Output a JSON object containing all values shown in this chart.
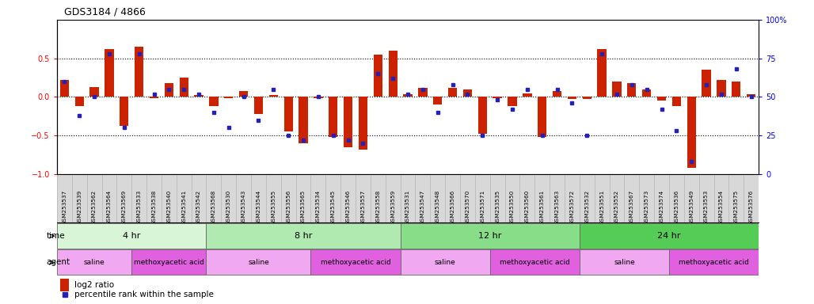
{
  "title": "GDS3184 / 4866",
  "samples": [
    "GSM253537",
    "GSM253539",
    "GSM253562",
    "GSM253564",
    "GSM253569",
    "GSM253533",
    "GSM253538",
    "GSM253540",
    "GSM253541",
    "GSM253542",
    "GSM253568",
    "GSM253530",
    "GSM253543",
    "GSM253544",
    "GSM253555",
    "GSM253556",
    "GSM253565",
    "GSM253534",
    "GSM253545",
    "GSM253546",
    "GSM253557",
    "GSM253558",
    "GSM253559",
    "GSM253531",
    "GSM253547",
    "GSM253548",
    "GSM253566",
    "GSM253570",
    "GSM253571",
    "GSM253535",
    "GSM253550",
    "GSM253560",
    "GSM253561",
    "GSM253563",
    "GSM253572",
    "GSM253532",
    "GSM253551",
    "GSM253552",
    "GSM253567",
    "GSM253573",
    "GSM253574",
    "GSM253536",
    "GSM253549",
    "GSM253553",
    "GSM253554",
    "GSM253575",
    "GSM253576"
  ],
  "log2_ratio": [
    0.22,
    -0.12,
    0.13,
    0.62,
    -0.38,
    0.65,
    -0.02,
    0.18,
    0.25,
    0.02,
    -0.12,
    -0.02,
    0.08,
    -0.22,
    0.02,
    -0.45,
    -0.6,
    -0.02,
    -0.52,
    -0.65,
    -0.68,
    0.55,
    0.6,
    0.03,
    0.12,
    -0.1,
    0.12,
    0.1,
    -0.48,
    -0.02,
    -0.12,
    0.05,
    -0.52,
    0.08,
    -0.03,
    -0.03,
    0.62,
    0.2,
    0.18,
    0.1,
    -0.05,
    -0.12,
    -0.92,
    0.35,
    0.22,
    0.2,
    0.03
  ],
  "percentile": [
    60,
    38,
    50,
    78,
    30,
    78,
    52,
    55,
    55,
    52,
    40,
    30,
    50,
    35,
    55,
    25,
    22,
    50,
    25,
    22,
    20,
    65,
    62,
    52,
    55,
    40,
    58,
    52,
    25,
    48,
    42,
    55,
    25,
    55,
    46,
    25,
    78,
    52,
    58,
    55,
    42,
    28,
    8,
    58,
    52,
    68,
    50
  ],
  "time_groups": [
    {
      "label": "4 hr",
      "start": 0,
      "end": 10,
      "color": "#d8f5d8"
    },
    {
      "label": "8 hr",
      "start": 10,
      "end": 23,
      "color": "#b0eab0"
    },
    {
      "label": "12 hr",
      "start": 23,
      "end": 35,
      "color": "#88dd88"
    },
    {
      "label": "24 hr",
      "start": 35,
      "end": 47,
      "color": "#55cc55"
    }
  ],
  "agent_groups": [
    {
      "label": "saline",
      "start": 0,
      "end": 5,
      "color": "#f0a8f0"
    },
    {
      "label": "methoxyacetic acid",
      "start": 5,
      "end": 10,
      "color": "#e060e0"
    },
    {
      "label": "saline",
      "start": 10,
      "end": 17,
      "color": "#f0a8f0"
    },
    {
      "label": "methoxyacetic acid",
      "start": 17,
      "end": 23,
      "color": "#e060e0"
    },
    {
      "label": "saline",
      "start": 23,
      "end": 29,
      "color": "#f0a8f0"
    },
    {
      "label": "methoxyacetic acid",
      "start": 29,
      "end": 35,
      "color": "#e060e0"
    },
    {
      "label": "saline",
      "start": 35,
      "end": 41,
      "color": "#f0a8f0"
    },
    {
      "label": "methoxyacetic acid",
      "start": 41,
      "end": 47,
      "color": "#e060e0"
    }
  ],
  "bar_color": "#cc2200",
  "dot_color": "#2222bb",
  "ylim_left": [
    -1.0,
    1.0
  ],
  "ylim_right": [
    0,
    100
  ],
  "yticks_left": [
    -1,
    -0.5,
    0,
    0.5
  ],
  "yticks_right": [
    0,
    25,
    50,
    75,
    100
  ],
  "hlines": [
    -0.5,
    0.0,
    0.5
  ],
  "bg_color": "#ffffff",
  "xticklabel_bg": "#d8d8d8"
}
